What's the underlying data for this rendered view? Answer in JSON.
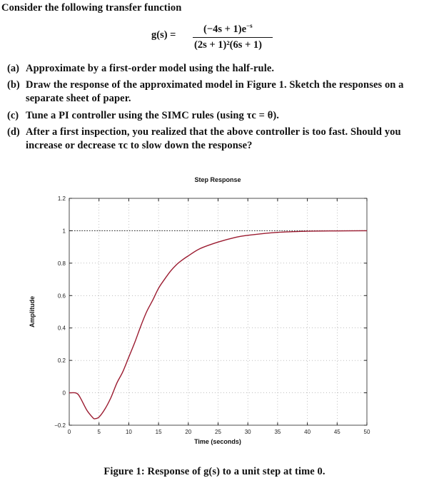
{
  "intro": "Consider the following transfer function",
  "equation": {
    "lhs": "g(s) =",
    "numerator": "(−4s + 1)e",
    "numerator_exp": "−s",
    "denominator": "(2s + 1)²(6s + 1)"
  },
  "questions": [
    {
      "label": "(a)",
      "line1": "Approximate by a first-order model using the half-rule.",
      "line2": ""
    },
    {
      "label": "(b)",
      "line1": "Draw the response of the approximated model in Figure 1. Sketch the responses on a",
      "line2": "separate sheet of paper."
    },
    {
      "label": "(c)",
      "line1": "Tune a PI controller using the SIMC rules (using τc = θ).",
      "line2": ""
    },
    {
      "label": "(d)",
      "line1": "After a first inspection, you realized that the above controller is too fast. Should you",
      "line2": "increase or decrease τc to slow down the response?"
    }
  ],
  "caption": "Figure 1: Response of g(s) to a unit step at time 0.",
  "chart_data": {
    "type": "line",
    "title": "Step Response",
    "xlabel": "Time (seconds)",
    "ylabel": "Amplitude",
    "xlim": [
      0,
      50
    ],
    "ylim": [
      -0.2,
      1.2
    ],
    "xticks": [
      "0",
      "5",
      "10",
      "15",
      "20",
      "25",
      "30",
      "35",
      "40",
      "45",
      "50"
    ],
    "yticks": [
      "−0.2",
      "0",
      "0.2",
      "0.4",
      "0.6",
      "0.8",
      "1",
      "1.2"
    ],
    "grid": true,
    "reference_line": 1,
    "line_color": "#9b1b30",
    "series": [
      {
        "x": [
          0,
          1,
          1.5,
          2,
          3,
          4,
          4.3,
          5,
          6,
          7,
          8,
          9,
          10,
          11,
          12,
          13,
          14,
          15,
          16,
          17,
          18,
          19,
          20,
          22,
          25,
          28,
          30,
          35,
          40,
          45,
          50
        ],
        "y": [
          0,
          0,
          -0.01,
          -0.04,
          -0.11,
          -0.155,
          -0.16,
          -0.15,
          -0.1,
          -0.03,
          0.06,
          0.13,
          0.22,
          0.31,
          0.41,
          0.5,
          0.57,
          0.645,
          0.7,
          0.75,
          0.79,
          0.82,
          0.845,
          0.89,
          0.93,
          0.96,
          0.972,
          0.99,
          0.997,
          0.999,
          1.0
        ]
      }
    ]
  }
}
